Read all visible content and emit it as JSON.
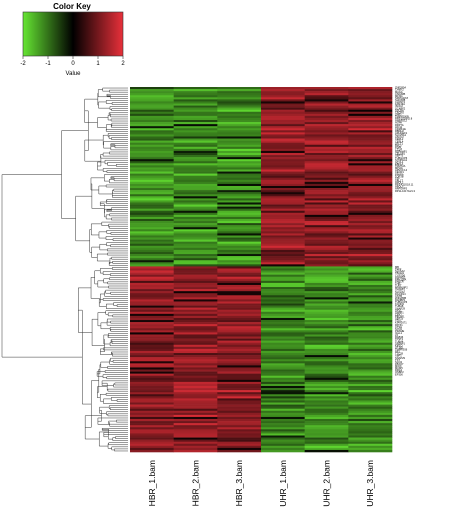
{
  "chart_data": {
    "type": "heatmap",
    "title": "",
    "color_key": {
      "title": "Color Key",
      "xlabel": "Value",
      "ticks": [
        -2,
        -1,
        0,
        1,
        2
      ],
      "range": [
        -2,
        2
      ],
      "colors": {
        "low": "#66e633",
        "mid": "#000000",
        "high": "#e8303a"
      }
    },
    "columns": [
      "HBR_1.bam",
      "HBR_2.bam",
      "HBR_3.bam",
      "UHR_1.bam",
      "UHR_2.bam",
      "UHR_3.bam"
    ],
    "rows": [
      "ZNF280A",
      "CHEK2",
      "MAGA",
      "CSF2RB",
      "MFNG",
      "SPATA18.8",
      "SHOX88",
      "CLDN74",
      "FAM19A",
      "ISOC2",
      "SCARF2",
      "DSCR6",
      "CECR5",
      "LMF1",
      "TMEM200B",
      "RP5-1016N2.8",
      "ANKRD12",
      "AGPA",
      "RRP7A",
      "HIC11",
      "CDMK1E",
      "RBDH2",
      "ARHGEF1",
      "SLC25A1",
      "ASCC2",
      "CERL2",
      "CERL4",
      "LPCT1",
      "RPL3",
      "PDRL",
      "CCL4",
      "NSPAHP1",
      "CELSR1",
      "SEPT3",
      "TUBGCP6",
      "SYNPAG1",
      "GTCL1",
      "EBF1A",
      "TRMT2A",
      "MPHG",
      "ARVCF.14",
      "CECR1",
      "PPARA",
      "TOP3B",
      "TEF",
      "SAL1T",
      "APOL2",
      "RP3-411G18.11",
      "APOL3",
      "ARFGAP3",
      "RP11-1017G21.3",
      "",
      "",
      "",
      "",
      "",
      "",
      "",
      "",
      "",
      "",
      "",
      "",
      "",
      "",
      "",
      "",
      "",
      "",
      "",
      "",
      "",
      "",
      "",
      "",
      "",
      "",
      "",
      "",
      "",
      "",
      "",
      "",
      "",
      "",
      "",
      "",
      "MB",
      "TEF2",
      "SLC6A2",
      "TBCEI1",
      "CYP2D6",
      "ASPHD2",
      "FAM118A",
      "PIWCR",
      "THR",
      "TUFT",
      "MAPK8IP2",
      "SH3BP1",
      "SLC2A2",
      "DGCR14",
      "CSTB",
      "ZNF280B",
      "RANBP1",
      "TUBGCP6",
      "KCNN3",
      "TUBA8",
      "SNAP29",
      "SF3C",
      "SNRP1",
      "CBX7",
      "PIK3IP1",
      "SEPT5",
      "YDJC",
      "KIAA1671",
      "PATZ1",
      "CTSH",
      "SYN3",
      "PRAME",
      "IGLL1",
      "L5",
      "RAB36",
      "TPST2",
      "TUBA4",
      "SH3BP1",
      "KIF1O",
      "GTSE1",
      "TMPRSS6",
      "NF2",
      "TTC28",
      "XBP1",
      "SNAP29",
      "TST",
      "SCO2",
      "FBXO7",
      "MIOX",
      "MCM5",
      "DRG1",
      "OSBP2",
      "EP300",
      "",
      "",
      "",
      "",
      "",
      "",
      "",
      "",
      "",
      "",
      "",
      "",
      "",
      "",
      "",
      "",
      "",
      "",
      "",
      "",
      "",
      "",
      "",
      "",
      "",
      "",
      "",
      "",
      "",
      "",
      "",
      "",
      "",
      "",
      "",
      "",
      ""
    ],
    "values": [],
    "row_dendrogram": true
  }
}
